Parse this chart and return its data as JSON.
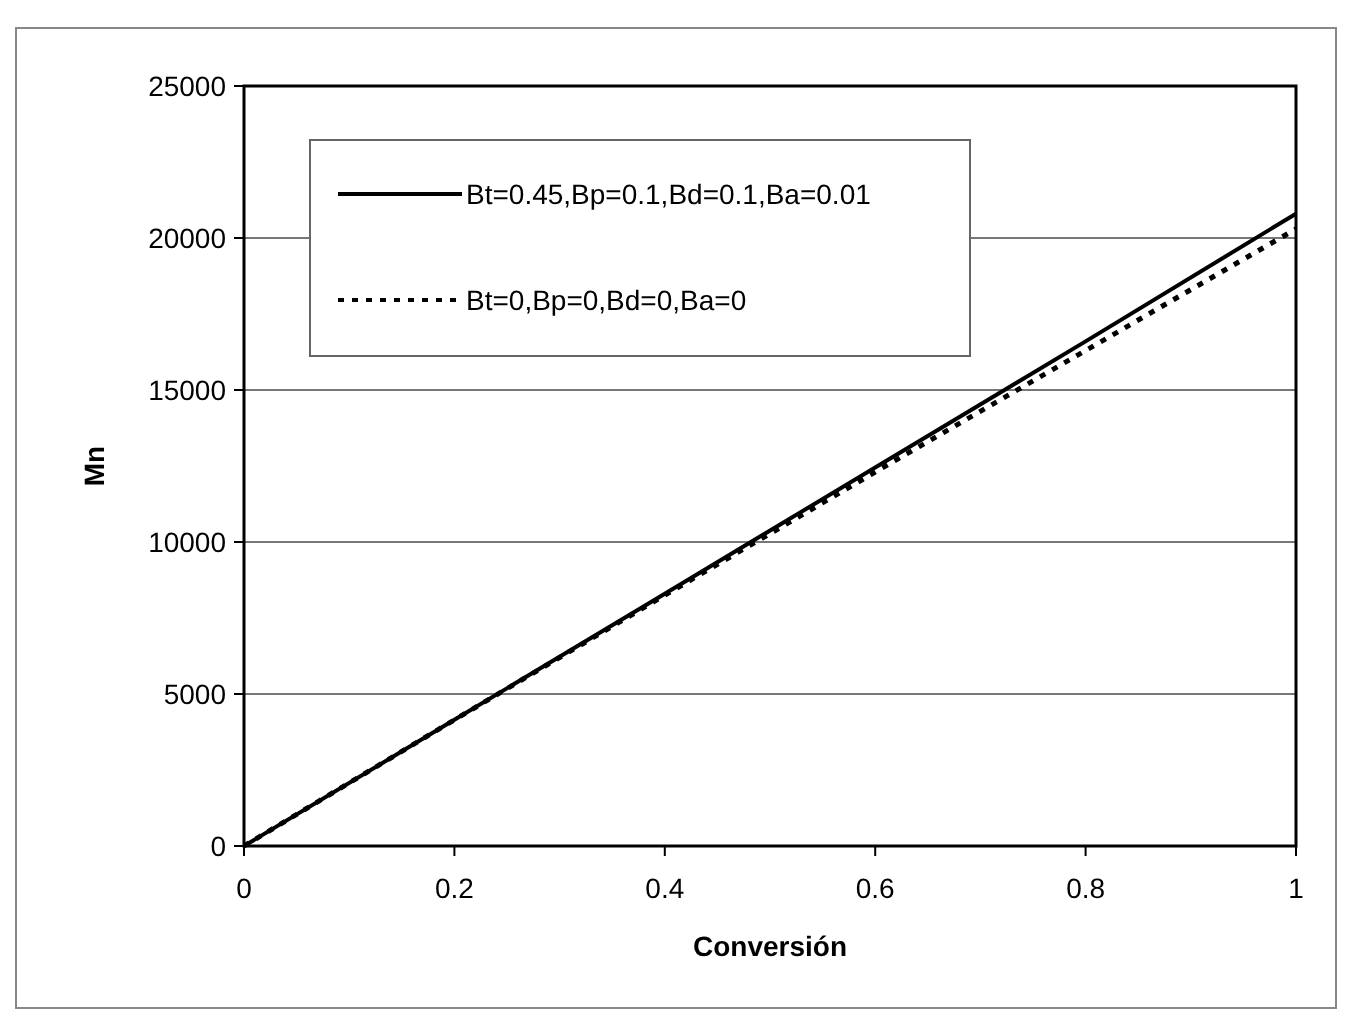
{
  "chart_data": {
    "type": "line",
    "xlabel": "Conversión",
    "ylabel": "Mn",
    "x": [
      0,
      0.2,
      0.4,
      0.6,
      0.8,
      1
    ],
    "series": [
      {
        "name": "Bt=0.45,Bp=0.1,Bd=0.1,Ba=0.01",
        "color": "#000000",
        "line_style": "solid",
        "values": [
          0,
          4150,
          8300,
          12450,
          16600,
          20800
        ]
      },
      {
        "name": "Bt=0,Bp=0,Bd=0,Ba=0",
        "color": "#000000",
        "line_style": "dotted",
        "values": [
          0,
          4150,
          8250,
          12300,
          16300,
          20300
        ]
      }
    ],
    "xlim": [
      0,
      1
    ],
    "xticks": [
      0,
      0.2,
      0.4,
      0.6,
      0.8,
      1
    ],
    "ylim": [
      0,
      25000
    ],
    "yticks": [
      0,
      5000,
      10000,
      15000,
      20000,
      25000
    ],
    "grid": "y",
    "legend": "top left",
    "marker": "none"
  }
}
